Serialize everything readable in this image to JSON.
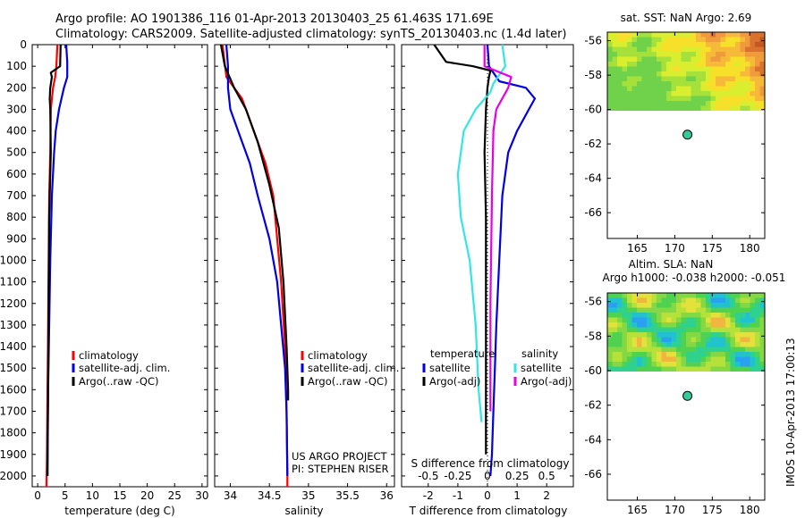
{
  "title_line1": "Argo profile: AO 1901386_116 01-Apr-2013 20130403_25 61.463S 171.69E",
  "title_line2": "Climatology: CARS2009. Satellite-adjusted climatology: synTS_20130403.nc (1.4d later)",
  "footer_rotated": "IMOS 10-Apr-2013 17:00:13",
  "colors": {
    "climatology": "#ff0000",
    "satellite": "#0000e0",
    "argo": "#000000",
    "sat_salinity": "#33e6e6",
    "argo_salinity": "#e600e6"
  },
  "chart_data": [
    {
      "type": "line",
      "name": "temperature",
      "xlabel": "temperature (deg C)",
      "xlim": [
        -1,
        31
      ],
      "ylim": [
        2050,
        0
      ],
      "xticks": [
        "0",
        "5",
        "10",
        "15",
        "20",
        "25",
        "30"
      ],
      "yticks": [
        "0",
        "100",
        "200",
        "300",
        "400",
        "500",
        "600",
        "700",
        "800",
        "900",
        "1000",
        "1100",
        "1200",
        "1300",
        "1400",
        "1500",
        "1600",
        "1700",
        "1800",
        "1900",
        "2000"
      ],
      "legend": [
        "climatology",
        "satellite-adj. clim.",
        "Argo(..raw -QC)"
      ],
      "series": [
        {
          "name": "climatology",
          "color": "#ff0000",
          "x": [
            3.6,
            3.4,
            3.2,
            2.8,
            2.4,
            2.3,
            2.1,
            2.0,
            1.9,
            1.8,
            1.7,
            1.6
          ],
          "y": [
            0,
            100,
            150,
            200,
            300,
            500,
            700,
            1000,
            1300,
            1600,
            1900,
            2050
          ]
        },
        {
          "name": "satellite-adj. clim.",
          "color": "#0000e0",
          "x": [
            5.2,
            5.4,
            5.4,
            4.8,
            3.9,
            3.3,
            3.0,
            2.6,
            2.3,
            2.1,
            1.9,
            1.8,
            1.8
          ],
          "y": [
            0,
            80,
            150,
            200,
            300,
            400,
            500,
            700,
            1000,
            1300,
            1600,
            1900,
            2000
          ]
        },
        {
          "name": "Argo(..raw -QC)",
          "color": "#000000",
          "x": [
            4.2,
            4.1,
            2.4,
            2.6,
            2.3,
            2.2,
            2.3,
            2.4,
            2.1,
            2.0,
            1.9,
            1.8
          ],
          "y": [
            0,
            100,
            130,
            150,
            200,
            250,
            300,
            500,
            800,
            1200,
            1600,
            2000
          ]
        }
      ]
    },
    {
      "type": "line",
      "name": "salinity",
      "xlabel": "salinity",
      "xlim": [
        33.8,
        36.1
      ],
      "ylim": [
        2050,
        0
      ],
      "xticks": [
        "34",
        "34.5",
        "35",
        "35.5",
        "36"
      ],
      "legend": [
        "climatology",
        "satellite-adj. clim.",
        "Argo(..raw -QC)"
      ],
      "annotations": [
        "US ARGO PROJECT",
        "PI: STEPHEN RISER"
      ],
      "series": [
        {
          "name": "climatology",
          "color": "#ff0000",
          "x": [
            33.9,
            33.95,
            34.05,
            34.15,
            34.3,
            34.45,
            34.55,
            34.6,
            34.65,
            34.7,
            34.72,
            34.73,
            34.73
          ],
          "y": [
            0,
            150,
            200,
            250,
            400,
            550,
            700,
            900,
            1100,
            1400,
            1700,
            2000,
            2050
          ]
        },
        {
          "name": "satellite-adj. clim.",
          "color": "#0000e0",
          "x": [
            33.95,
            33.97,
            33.97,
            34.0,
            34.1,
            34.25,
            34.35,
            34.5,
            34.6,
            34.65,
            34.7,
            34.72,
            34.73
          ],
          "y": [
            0,
            100,
            200,
            300,
            400,
            550,
            700,
            900,
            1100,
            1300,
            1500,
            1700,
            2000
          ]
        },
        {
          "name": "Argo(..raw -QC)",
          "color": "#000000",
          "x": [
            33.88,
            33.93,
            34.05,
            34.2,
            34.35,
            34.5,
            34.62,
            34.68,
            34.72,
            34.74,
            34.74
          ],
          "y": [
            0,
            100,
            200,
            300,
            450,
            650,
            850,
            1100,
            1400,
            1600,
            1650
          ]
        }
      ]
    },
    {
      "type": "line",
      "name": "differences",
      "xlabel": "T difference from climatology",
      "xlabel2": "S difference from climatology",
      "xlim": [
        -2.9,
        2.9
      ],
      "ylim": [
        2050,
        0
      ],
      "xticks": [
        "-2",
        "-1",
        "0",
        "1",
        "2"
      ],
      "xticks2": [
        "-0.5",
        "-0.25",
        "0",
        "0.25",
        "0.5"
      ],
      "legend_headers": [
        "temperature",
        "salinity"
      ],
      "legend": [
        "satellite",
        "Argo(-adj)",
        "satellite",
        "Argo(-adj)"
      ],
      "series": [
        {
          "name": "temperature satellite",
          "color": "#0000e0",
          "x": [
            0,
            0.05,
            0.4,
            1.3,
            1.6,
            1.4,
            1.0,
            0.7,
            0.5,
            0.4,
            0.3,
            0.25,
            0.2,
            0.15,
            0.1
          ],
          "y": [
            0,
            100,
            170,
            200,
            250,
            300,
            400,
            500,
            700,
            1000,
            1300,
            1500,
            1700,
            1900,
            2000
          ]
        },
        {
          "name": "temperature Argo(-adj)",
          "color": "#000000",
          "x": [
            -1.8,
            -1.4,
            -0.5,
            0.1,
            0.05,
            0.0,
            -0.05,
            -0.1,
            -0.05,
            -0.05,
            -0.05,
            -0.05
          ],
          "y": [
            0,
            80,
            100,
            120,
            150,
            200,
            300,
            500,
            800,
            1200,
            1600,
            1900
          ]
        },
        {
          "name": "salinity satellite",
          "color": "#33e6e6",
          "x": [
            0.5,
            0.6,
            0.2,
            0.1,
            -0.4,
            -0.8,
            -1.0,
            -0.9,
            -0.6,
            -0.4,
            -0.3,
            -0.2
          ],
          "y": [
            0,
            100,
            180,
            220,
            300,
            400,
            600,
            800,
            1000,
            1300,
            1600,
            1750
          ]
        },
        {
          "name": "salinity Argo(-adj)",
          "color": "#e600e6",
          "x": [
            -0.1,
            -0.1,
            0.8,
            0.7,
            0.3,
            0.2,
            0.15,
            0.1,
            0.1
          ],
          "y": [
            0,
            100,
            150,
            200,
            300,
            400,
            700,
            1200,
            1700
          ]
        }
      ]
    },
    {
      "type": "heatmap",
      "name": "sst_map",
      "title": "sat. SST: NaN Argo: 2.69",
      "xlim": [
        161,
        182
      ],
      "ylim": [
        -67.5,
        -55.5
      ],
      "xticks": [
        "165",
        "170",
        "175",
        "180"
      ],
      "yticks": [
        "-56",
        "-58",
        "-60",
        "-62",
        "-64",
        "-66"
      ],
      "argo_position": [
        171.69,
        -61.463
      ]
    },
    {
      "type": "heatmap",
      "name": "sla_map",
      "title": "Altim. SLA: NaN",
      "subtitle": "Argo h1000: -0.038 h2000: -0.051",
      "xlim": [
        161,
        182
      ],
      "ylim": [
        -67.5,
        -55.5
      ],
      "xticks": [
        "165",
        "170",
        "175",
        "180"
      ],
      "yticks": [
        "-56",
        "-58",
        "-60",
        "-62",
        "-64",
        "-66"
      ],
      "argo_position": [
        171.69,
        -61.463
      ]
    }
  ]
}
